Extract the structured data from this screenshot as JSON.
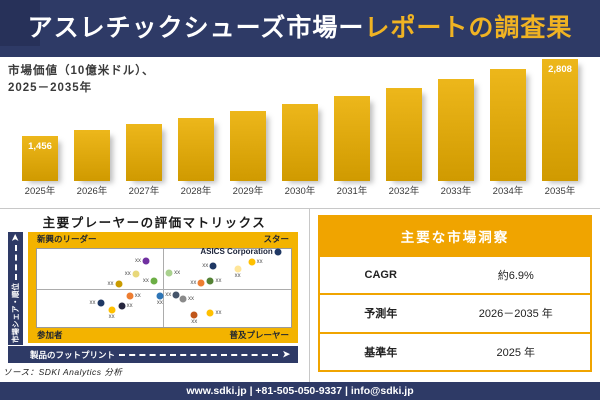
{
  "banner": {
    "title_white": "アスレチックシューズ市場ー",
    "title_gold": "レポートの調査果"
  },
  "chart_data": [
    {
      "id": "market-value-bars",
      "type": "bar",
      "title": "市場価値（10億米ドル）、2025－2035年",
      "title_line1": "市場価値（10億米ドル）、",
      "title_line2": "2025－2035年",
      "categories": [
        "2025年",
        "2026年",
        "2027年",
        "2028年",
        "2029年",
        "2030年",
        "2031年",
        "2032年",
        "2033年",
        "2034年",
        "2035年"
      ],
      "values": [
        1456,
        1555,
        1660,
        1773,
        1894,
        2022,
        2160,
        2306,
        2463,
        2630,
        2808
      ],
      "data_labels": [
        "1,456",
        "",
        "",
        "",
        "",
        "",
        "",
        "",
        "",
        "",
        "2,808"
      ],
      "grid": false,
      "legend": "none"
    },
    {
      "id": "player-evaluation-matrix",
      "type": "scatter",
      "title": "主要プレーヤーの評価マトリックス",
      "xlabel": "製品のフットプリント",
      "ylabel": "市場シェア・順位",
      "quadrants": {
        "top_left": "新興のリーダー",
        "top_right": "スター",
        "bottom_left": "参加者",
        "bottom_right": "普及プレーヤー"
      },
      "highlight_company": "ASICS Corporation",
      "source": "ソース：SDKI Analytics 分析",
      "points": [
        {
          "x": 42.9,
          "y": 15.8,
          "color": "#7030A0",
          "label": "xx",
          "pos": "left"
        },
        {
          "x": 38.9,
          "y": 31.6,
          "color": "#E8D87A",
          "label": "xx",
          "pos": "left"
        },
        {
          "x": 32.1,
          "y": 44.7,
          "color": "#C99B00",
          "label": "xx",
          "pos": "left"
        },
        {
          "x": 46.0,
          "y": 40.8,
          "color": "#6CAE45",
          "label": "xx",
          "pos": "left"
        },
        {
          "x": 36.5,
          "y": 60.5,
          "color": "#ED7D31",
          "label": "xx",
          "pos": "right"
        },
        {
          "x": 48.4,
          "y": 60.5,
          "color": "#2E75B6",
          "label": "xx",
          "pos": "below"
        },
        {
          "x": 25.0,
          "y": 69.7,
          "color": "#1F3864",
          "label": "xx",
          "pos": "left"
        },
        {
          "x": 29.4,
          "y": 77.6,
          "color": "#FFC000",
          "label": "xx",
          "pos": "below"
        },
        {
          "x": 33.3,
          "y": 73.7,
          "color": "#26263E",
          "label": "xx",
          "pos": "right"
        },
        {
          "x": 52.0,
          "y": 30.3,
          "color": "#A9D18E",
          "label": "xx",
          "pos": "right"
        },
        {
          "x": 69.4,
          "y": 22.4,
          "color": "#1F3864",
          "label": "xx",
          "pos": "left"
        },
        {
          "x": 79.0,
          "y": 25.0,
          "color": "#FFE699",
          "label": "xx",
          "pos": "below"
        },
        {
          "x": 84.5,
          "y": 17.1,
          "color": "#FFC000",
          "label": "xx",
          "pos": "right"
        },
        {
          "x": 94.8,
          "y": 3.9,
          "color": "#1F3864",
          "label": "ASICS Corporation",
          "pos": "left",
          "emphasis": true
        },
        {
          "x": 68.3,
          "y": 40.8,
          "color": "#548235",
          "label": "xx",
          "pos": "right"
        },
        {
          "x": 64.7,
          "y": 43.4,
          "color": "#ED7D31",
          "label": "xx",
          "pos": "left"
        },
        {
          "x": 54.8,
          "y": 59.2,
          "color": "#44546A",
          "label": "xx",
          "pos": "left"
        },
        {
          "x": 57.5,
          "y": 64.5,
          "color": "#8A8A8A",
          "label": "xx",
          "pos": "right"
        },
        {
          "x": 61.9,
          "y": 84.2,
          "color": "#C0561B",
          "label": "xx",
          "pos": "below"
        },
        {
          "x": 68.3,
          "y": 81.6,
          "color": "#FFC000",
          "label": "xx",
          "pos": "right"
        }
      ]
    }
  ],
  "insights_table": {
    "header": "主要な市場洞察",
    "rows": [
      {
        "label": "CAGR",
        "value": "約6.9%"
      },
      {
        "label": "予測年",
        "value": "2026－2035 年"
      },
      {
        "label": "基準年",
        "value": "2025 年"
      }
    ]
  },
  "footer": {
    "text": "www.sdki.jp | +81-505-050-9337 | info@sdki.jp"
  },
  "colors": {
    "navy": "#2E3A66",
    "banner_accent_square": "#273159",
    "title_gold": "#F0B323",
    "bar_top": "#EDB71B",
    "bar_bottom": "#D09A00",
    "frame_gold": "#F3B300",
    "table_gold": "#F0A400",
    "divider_gray": "#C8C8C8"
  }
}
